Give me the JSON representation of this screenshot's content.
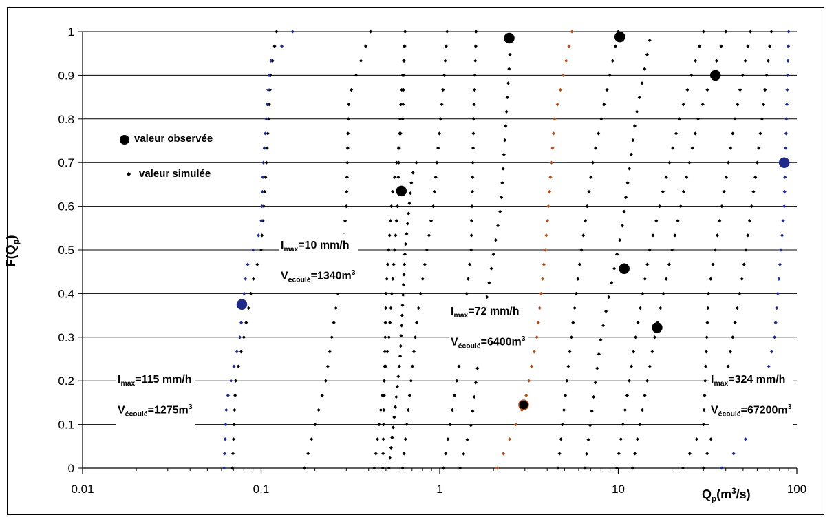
{
  "chart_data": {
    "type": "scatter",
    "xlabel": {
      "main": "Q",
      "sub": "p",
      "unit_pre": "(m",
      "unit_sup": "3",
      "unit_post": "/s)"
    },
    "ylabel": {
      "main": "F(Q",
      "sub": "p",
      "post": ")"
    },
    "x_scale": "log",
    "xlim": [
      0.01,
      100
    ],
    "ylim": [
      0,
      1
    ],
    "x_ticks": [
      "0.01",
      "0.1",
      "1",
      "10",
      "100"
    ],
    "y_ticks": [
      "0",
      "0.1",
      "0.2",
      "0.3",
      "0.4",
      "0.5",
      "0.6",
      "0.7",
      "0.8",
      "0.9",
      "1"
    ],
    "grid": "horizontal",
    "legend": {
      "placement": "upper-left",
      "observed": "valeur observée",
      "simulated": "valeur simulée"
    },
    "colors": {
      "simulated": "#000000",
      "blue_series": "#1f2a8a",
      "brown_series": "#b0501c",
      "observed": "#000000"
    },
    "simulated_series": [
      {
        "color": "black",
        "points": [
          [
            0.069,
            0
          ],
          [
            0.072,
            0.2
          ],
          [
            0.08,
            0.3
          ],
          [
            0.09,
            0.43
          ],
          [
            0.1,
            0.5
          ],
          [
            0.107,
            0.7
          ],
          [
            0.113,
            0.9
          ],
          [
            0.122,
            1.0
          ]
        ]
      },
      {
        "color": "blue",
        "points": [
          [
            0.062,
            0
          ],
          [
            0.064,
            0.15
          ],
          [
            0.076,
            0.3
          ],
          [
            0.083,
            0.46
          ],
          [
            0.1,
            0.55
          ],
          [
            0.103,
            0.7
          ],
          [
            0.112,
            0.93
          ],
          [
            0.15,
            1.0
          ]
        ]
      },
      {
        "color": "black",
        "points": [
          [
            0.175,
            0
          ],
          [
            0.23,
            0.2
          ],
          [
            0.28,
            0.45
          ],
          [
            0.3,
            0.6
          ],
          [
            0.31,
            0.85
          ],
          [
            0.41,
            1.0
          ]
        ]
      },
      {
        "color": "black",
        "points": [
          [
            0.43,
            0
          ],
          [
            0.52,
            0.3
          ],
          [
            0.58,
            0.6
          ],
          [
            0.6,
            0.8
          ],
          [
            0.64,
            1.0
          ]
        ]
      },
      {
        "color": "black",
        "points": [
          [
            0.48,
            0
          ],
          [
            0.5,
            0.4
          ],
          [
            0.54,
            0.62
          ],
          [
            0.62,
            0.8
          ],
          [
            0.64,
            1.0
          ]
        ]
      },
      {
        "color": "black",
        "points": [
          [
            0.52,
            0
          ],
          [
            0.6,
            0.25
          ],
          [
            0.64,
            0.5
          ],
          [
            0.7,
            0.67
          ],
          [
            0.74,
            0.7
          ]
        ]
      },
      {
        "color": "black",
        "points": [
          [
            0.62,
            0
          ],
          [
            0.75,
            0.35
          ],
          [
            0.92,
            0.6
          ],
          [
            1.06,
            0.9
          ],
          [
            1.1,
            1.0
          ]
        ]
      },
      {
        "color": "black",
        "points": [
          [
            1.05,
            0
          ],
          [
            1.3,
            0.25
          ],
          [
            1.5,
            0.5
          ],
          [
            1.55,
            0.8
          ],
          [
            1.6,
            1.0
          ]
        ]
      },
      {
        "color": "black",
        "points": [
          [
            1.3,
            0
          ],
          [
            1.5,
            0.1
          ],
          [
            1.7,
            0.3
          ],
          [
            2.2,
            0.6
          ],
          [
            2.5,
            0.98
          ]
        ]
      },
      {
        "color": "brown",
        "points": [
          [
            2.1,
            0
          ],
          [
            3.0,
            0.15
          ],
          [
            3.5,
            0.3
          ],
          [
            3.9,
            0.5
          ],
          [
            4.4,
            0.8
          ],
          [
            5.5,
            1.0
          ]
        ]
      },
      {
        "color": "black",
        "points": [
          [
            4.6,
            0
          ],
          [
            5.3,
            0.25
          ],
          [
            6.0,
            0.45
          ],
          [
            7.2,
            0.7
          ],
          [
            10.0,
            1.0
          ]
        ]
      },
      {
        "color": "black",
        "points": [
          [
            6.5,
            0
          ],
          [
            8.0,
            0.3
          ],
          [
            10.5,
            0.55
          ],
          [
            12.5,
            0.8
          ],
          [
            15.0,
            0.98
          ]
        ]
      },
      {
        "color": "black",
        "points": [
          [
            9.8,
            0
          ],
          [
            12.5,
            0.3
          ],
          [
            15.0,
            0.5
          ],
          [
            22.0,
            0.8
          ],
          [
            30.0,
            1.0
          ]
        ]
      },
      {
        "color": "black",
        "points": [
          [
            12.0,
            0
          ],
          [
            16.0,
            0.3
          ],
          [
            20.0,
            0.5
          ],
          [
            28.0,
            0.8
          ],
          [
            40.0,
            1.0
          ]
        ]
      },
      {
        "color": "black",
        "points": [
          [
            23.0,
            0
          ],
          [
            30.0,
            0.1
          ],
          [
            32.0,
            0.4
          ],
          [
            38.0,
            0.6
          ],
          [
            45.0,
            0.8
          ],
          [
            55.0,
            1.0
          ]
        ]
      },
      {
        "color": "black",
        "points": [
          [
            30.0,
            0
          ],
          [
            40.0,
            0.2
          ],
          [
            50.0,
            0.45
          ],
          [
            60.0,
            0.7
          ],
          [
            72.0,
            1.0
          ]
        ]
      },
      {
        "color": "blue",
        "points": [
          [
            38.0,
            0
          ],
          [
            60.0,
            0.1
          ],
          [
            75.0,
            0.3
          ],
          [
            85.0,
            0.6
          ],
          [
            90.0,
            1.0
          ]
        ]
      }
    ],
    "observed": [
      {
        "x": 0.078,
        "y": 0.375,
        "ring": "blue"
      },
      {
        "x": 0.61,
        "y": 0.635,
        "ring": "black"
      },
      {
        "x": 2.45,
        "y": 0.985,
        "ring": "black"
      },
      {
        "x": 2.95,
        "y": 0.145,
        "ring": "brown"
      },
      {
        "x": 10.2,
        "y": 0.988,
        "ring": "black"
      },
      {
        "x": 10.8,
        "y": 0.457,
        "ring": "black"
      },
      {
        "x": 16.5,
        "y": 0.322,
        "ring": "black"
      },
      {
        "x": 35.0,
        "y": 0.9,
        "ring": "black"
      },
      {
        "x": 85.0,
        "y": 0.7,
        "ring": "blue"
      }
    ],
    "annotations": [
      {
        "i_label": "I",
        "i_sub": "max",
        "i_value": "=10 mm/h",
        "v_label": "V",
        "v_sub": "écoulé",
        "v_value": "=1340m",
        "v_sup": "3"
      },
      {
        "i_label": "I",
        "i_sub": "max",
        "i_value": "=72 mm/h",
        "v_label": "V",
        "v_sub": "écoulé",
        "v_value": "=6400m",
        "v_sup": "3"
      },
      {
        "i_label": "I",
        "i_sub": "max",
        "i_value": "=115 mm/h",
        "v_label": "V",
        "v_sub": "écoulé",
        "v_value": "=1275m",
        "v_sup": "3"
      },
      {
        "i_label": "I",
        "i_sub": "max",
        "i_value": "=324 mm/h",
        "v_label": "V",
        "v_sub": "écoulé",
        "v_value": "=67200m",
        "v_sup": "3"
      }
    ]
  }
}
